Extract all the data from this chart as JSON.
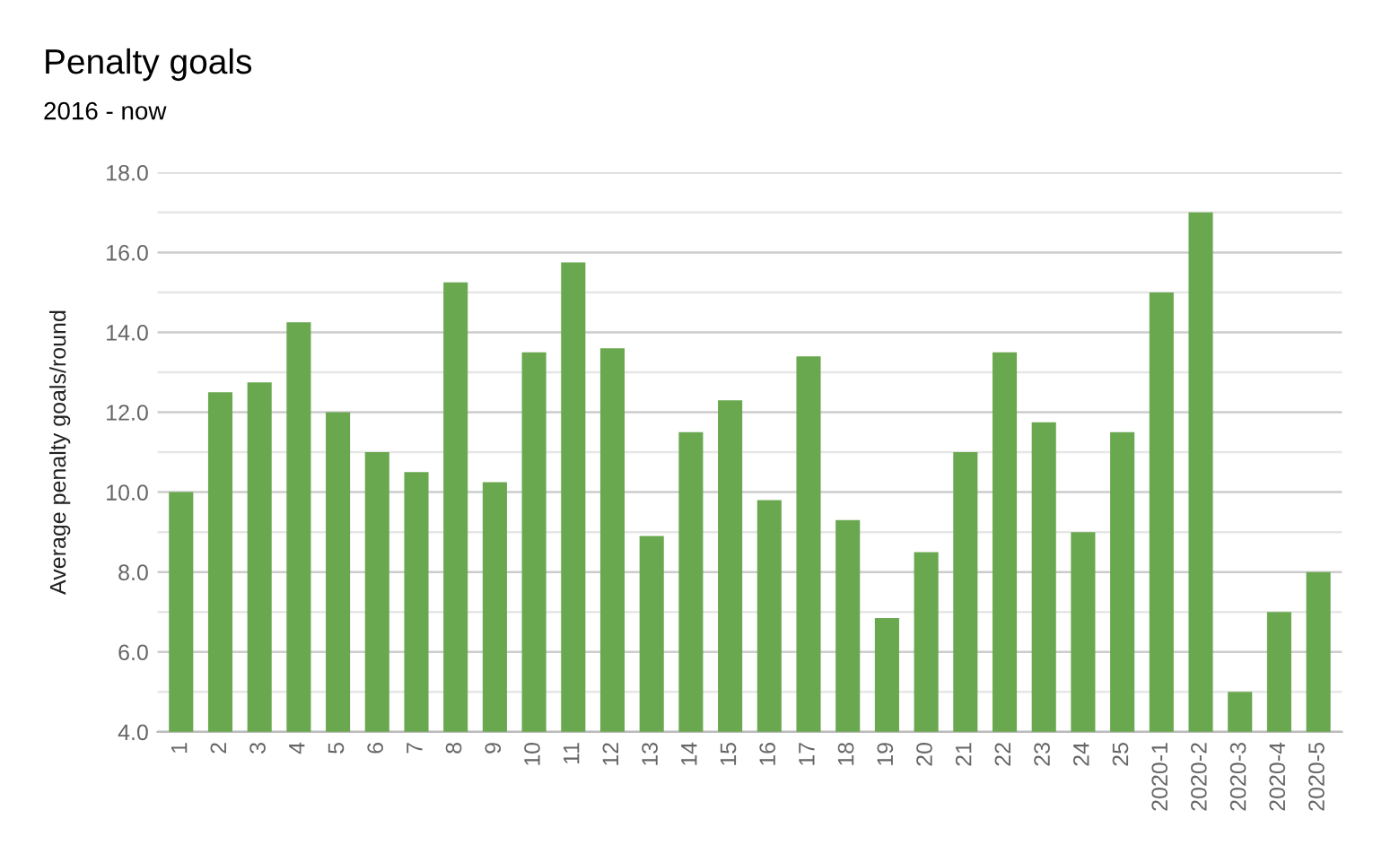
{
  "chart_data": {
    "type": "bar",
    "title": "Penalty goals",
    "subtitle": "2016 - now",
    "ylabel": "Average penalty goals/round",
    "categories": [
      "1",
      "2",
      "3",
      "4",
      "5",
      "6",
      "7",
      "8",
      "9",
      "10",
      "11",
      "12",
      "13",
      "14",
      "15",
      "16",
      "17",
      "18",
      "19",
      "20",
      "21",
      "22",
      "23",
      "24",
      "25",
      "2020-1",
      "2020-2",
      "2020-3",
      "2020-4",
      "2020-5"
    ],
    "values": [
      10.0,
      12.5,
      12.75,
      14.25,
      12.0,
      11.0,
      10.5,
      15.25,
      10.25,
      13.5,
      15.75,
      13.6,
      8.9,
      11.5,
      12.3,
      9.8,
      13.4,
      9.3,
      6.85,
      8.5,
      11.0,
      13.5,
      11.75,
      9.0,
      11.5,
      15.0,
      17.0,
      5.0,
      7.0,
      8.0
    ],
    "color": "#6aa84f",
    "ylim": [
      4,
      18
    ],
    "yticks": [
      {
        "value": 4,
        "label": "4.0"
      },
      {
        "value": 5,
        "label": null
      },
      {
        "value": 6,
        "label": "6.0"
      },
      {
        "value": 7,
        "label": null
      },
      {
        "value": 8,
        "label": "8.0"
      },
      {
        "value": 9,
        "label": null
      },
      {
        "value": 10,
        "label": "10.0"
      },
      {
        "value": 11,
        "label": null
      },
      {
        "value": 12,
        "label": "12.0"
      },
      {
        "value": 13,
        "label": null
      },
      {
        "value": 14,
        "label": "14.0"
      },
      {
        "value": 15,
        "label": null
      },
      {
        "value": 16,
        "label": "16.0"
      },
      {
        "value": 17,
        "label": null
      },
      {
        "value": 18,
        "label": "18.0"
      }
    ],
    "grid": "y"
  }
}
